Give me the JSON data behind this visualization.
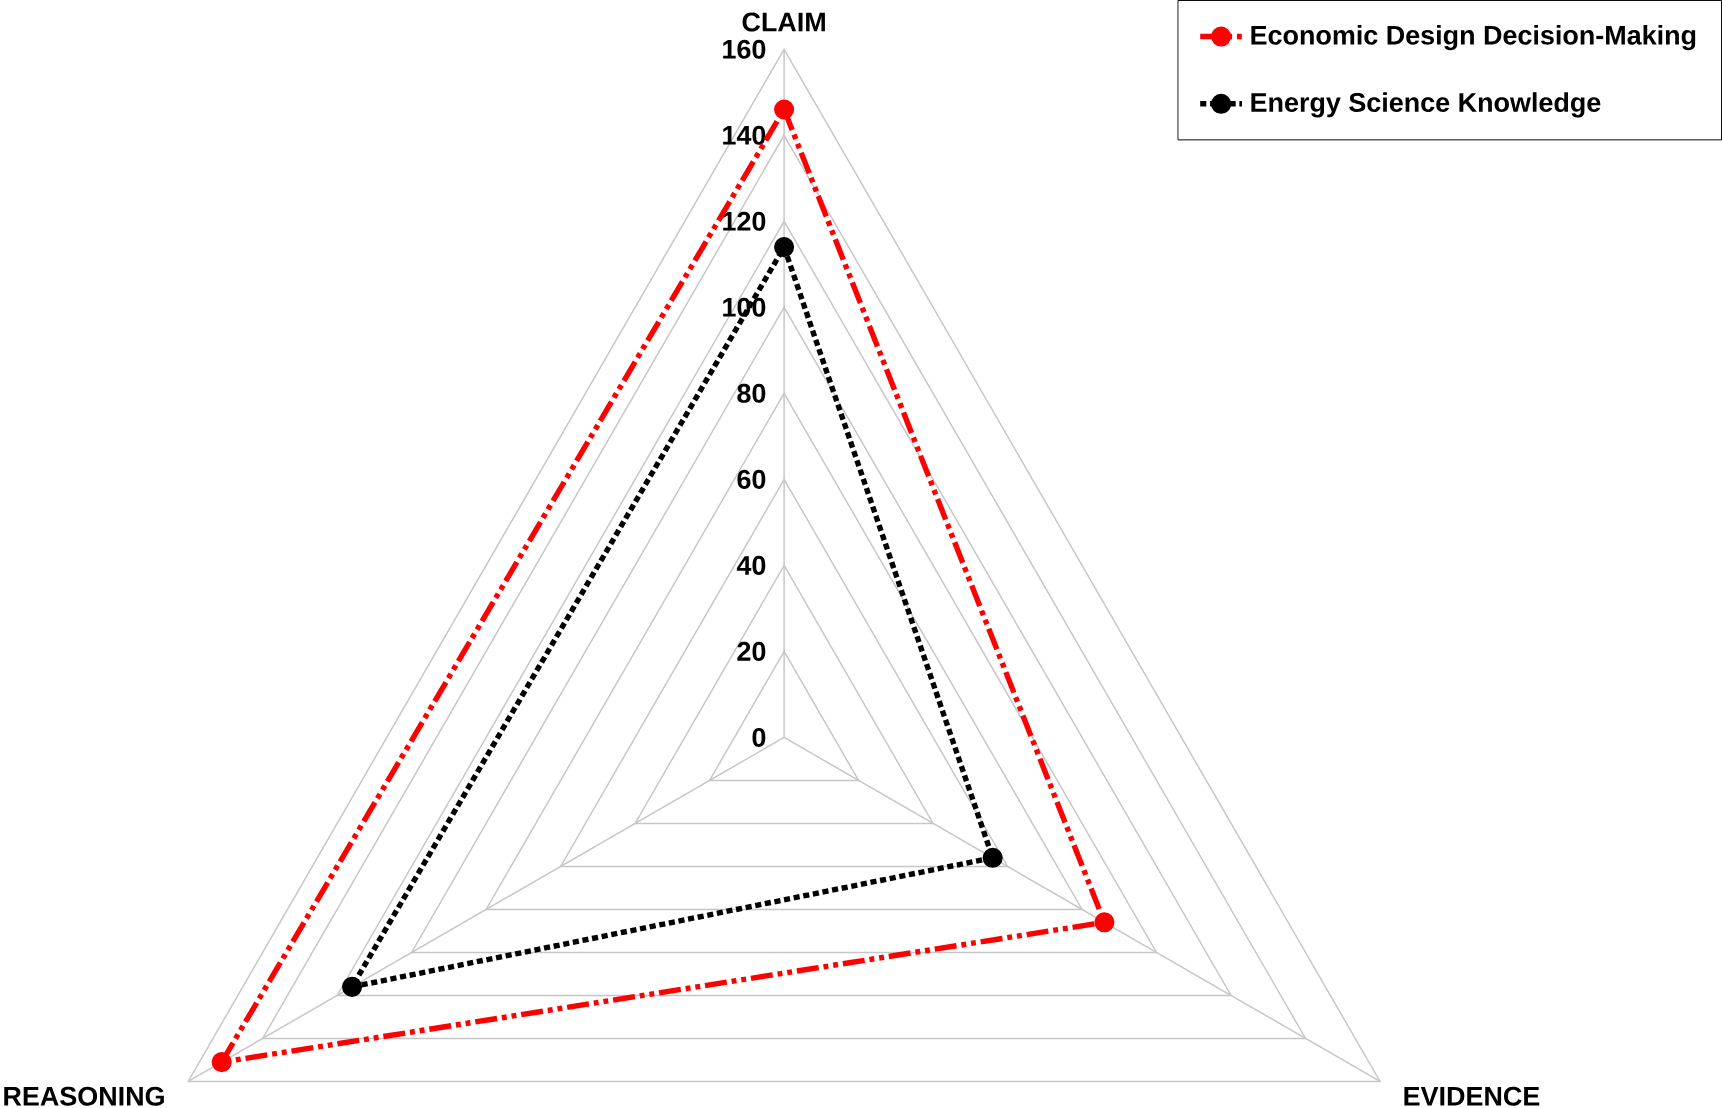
{
  "chart_data": {
    "type": "radar",
    "categories": [
      "CLAIM",
      "EVIDENCE",
      "REASONING"
    ],
    "ylim": [
      0,
      160
    ],
    "yticks": [
      0,
      20,
      40,
      60,
      80,
      100,
      120,
      140,
      160
    ],
    "grid": true,
    "legend": "top right",
    "marker": "circle",
    "series": [
      {
        "name": "Economic Design Decision-Making",
        "color": "#ff0000",
        "line_style": "dashed",
        "values": [
          146,
          86,
          151
        ]
      },
      {
        "name": "Energy Science Knowledge",
        "color": "#000000",
        "line_style": "dotted",
        "values": [
          114,
          56,
          116
        ]
      }
    ]
  }
}
